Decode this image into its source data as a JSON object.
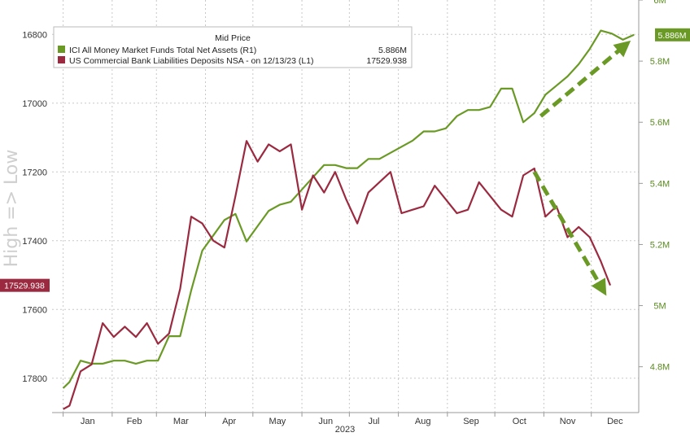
{
  "chart_data": {
    "type": "line",
    "side_label": "High => Low",
    "xlabel": "2023",
    "x_tick_labels": [
      "Jan",
      "Feb",
      "Mar",
      "Apr",
      "May",
      "Jun",
      "Jul",
      "Aug",
      "Sep",
      "Oct",
      "Nov",
      "Dec"
    ],
    "left_axis": {
      "inverted": true,
      "ylim": [
        17900,
        16700
      ],
      "ticks": [
        16800,
        17000,
        17200,
        17400,
        17600,
        17800
      ]
    },
    "right_axis": {
      "ylim": [
        4.65,
        6.0
      ],
      "ticks": [
        4.8,
        5.0,
        5.2,
        5.4,
        5.6,
        5.8,
        6.0
      ],
      "tick_labels": [
        "4.8M",
        "5M",
        "5.2M",
        "5.4M",
        "5.6M",
        "5.8M",
        "6M"
      ]
    },
    "legend": {
      "title": "Mid Price",
      "placement": "top-left"
    },
    "series": [
      {
        "name": "ICI All Money Market Funds Total Net Assets  (R1)",
        "legend_value": "5.886M",
        "badge_label": "5.886M",
        "axis": "right",
        "color": "#6a9a25",
        "points": [
          [
            "2023-01-01",
            4.73
          ],
          [
            "2023-01-05",
            4.75
          ],
          [
            "2023-01-12",
            4.82
          ],
          [
            "2023-01-19",
            4.81
          ],
          [
            "2023-01-26",
            4.81
          ],
          [
            "2023-02-02",
            4.82
          ],
          [
            "2023-02-09",
            4.82
          ],
          [
            "2023-02-16",
            4.81
          ],
          [
            "2023-02-23",
            4.82
          ],
          [
            "2023-03-02",
            4.82
          ],
          [
            "2023-03-09",
            4.9
          ],
          [
            "2023-03-16",
            4.9
          ],
          [
            "2023-03-23",
            5.05
          ],
          [
            "2023-03-30",
            5.18
          ],
          [
            "2023-04-06",
            5.23
          ],
          [
            "2023-04-13",
            5.28
          ],
          [
            "2023-04-20",
            5.3
          ],
          [
            "2023-04-27",
            5.21
          ],
          [
            "2023-05-04",
            5.26
          ],
          [
            "2023-05-11",
            5.31
          ],
          [
            "2023-05-18",
            5.33
          ],
          [
            "2023-05-25",
            5.34
          ],
          [
            "2023-06-01",
            5.38
          ],
          [
            "2023-06-08",
            5.42
          ],
          [
            "2023-06-15",
            5.46
          ],
          [
            "2023-06-22",
            5.46
          ],
          [
            "2023-06-29",
            5.45
          ],
          [
            "2023-07-06",
            5.45
          ],
          [
            "2023-07-13",
            5.48
          ],
          [
            "2023-07-20",
            5.48
          ],
          [
            "2023-07-27",
            5.5
          ],
          [
            "2023-08-03",
            5.52
          ],
          [
            "2023-08-10",
            5.54
          ],
          [
            "2023-08-17",
            5.57
          ],
          [
            "2023-08-24",
            5.57
          ],
          [
            "2023-08-31",
            5.58
          ],
          [
            "2023-09-07",
            5.62
          ],
          [
            "2023-09-14",
            5.64
          ],
          [
            "2023-09-21",
            5.64
          ],
          [
            "2023-09-28",
            5.65
          ],
          [
            "2023-10-05",
            5.71
          ],
          [
            "2023-10-12",
            5.71
          ],
          [
            "2023-10-19",
            5.6
          ],
          [
            "2023-10-26",
            5.63
          ],
          [
            "2023-11-02",
            5.69
          ],
          [
            "2023-11-09",
            5.72
          ],
          [
            "2023-11-16",
            5.75
          ],
          [
            "2023-11-23",
            5.79
          ],
          [
            "2023-11-30",
            5.84
          ],
          [
            "2023-12-07",
            5.9
          ],
          [
            "2023-12-14",
            5.89
          ],
          [
            "2023-12-21",
            5.87
          ],
          [
            "2023-12-28",
            5.886
          ]
        ]
      },
      {
        "name": "US Commercial Bank Liabilities Deposits NSA -  on 12/13/23  (L1)",
        "legend_value": "17529.938",
        "badge_label": "17529.938",
        "axis": "left",
        "color": "#9b2a40",
        "points": [
          [
            "2023-01-01",
            17890
          ],
          [
            "2023-01-05",
            17880
          ],
          [
            "2023-01-12",
            17780
          ],
          [
            "2023-01-19",
            17760
          ],
          [
            "2023-01-26",
            17640
          ],
          [
            "2023-02-02",
            17680
          ],
          [
            "2023-02-09",
            17650
          ],
          [
            "2023-02-16",
            17680
          ],
          [
            "2023-02-23",
            17640
          ],
          [
            "2023-03-02",
            17700
          ],
          [
            "2023-03-09",
            17670
          ],
          [
            "2023-03-16",
            17540
          ],
          [
            "2023-03-23",
            17330
          ],
          [
            "2023-03-30",
            17350
          ],
          [
            "2023-04-06",
            17400
          ],
          [
            "2023-04-13",
            17420
          ],
          [
            "2023-04-20",
            17270
          ],
          [
            "2023-04-27",
            17110
          ],
          [
            "2023-05-04",
            17170
          ],
          [
            "2023-05-11",
            17120
          ],
          [
            "2023-05-18",
            17140
          ],
          [
            "2023-05-25",
            17120
          ],
          [
            "2023-06-01",
            17310
          ],
          [
            "2023-06-08",
            17210
          ],
          [
            "2023-06-15",
            17260
          ],
          [
            "2023-06-22",
            17200
          ],
          [
            "2023-06-29",
            17280
          ],
          [
            "2023-07-06",
            17350
          ],
          [
            "2023-07-13",
            17260
          ],
          [
            "2023-07-20",
            17230
          ],
          [
            "2023-07-27",
            17200
          ],
          [
            "2023-08-03",
            17320
          ],
          [
            "2023-08-10",
            17310
          ],
          [
            "2023-08-17",
            17300
          ],
          [
            "2023-08-24",
            17240
          ],
          [
            "2023-08-31",
            17280
          ],
          [
            "2023-09-07",
            17320
          ],
          [
            "2023-09-14",
            17310
          ],
          [
            "2023-09-21",
            17230
          ],
          [
            "2023-09-28",
            17270
          ],
          [
            "2023-10-05",
            17310
          ],
          [
            "2023-10-12",
            17330
          ],
          [
            "2023-10-19",
            17210
          ],
          [
            "2023-10-26",
            17190
          ],
          [
            "2023-11-02",
            17330
          ],
          [
            "2023-11-09",
            17300
          ],
          [
            "2023-11-16",
            17390
          ],
          [
            "2023-11-23",
            17360
          ],
          [
            "2023-11-30",
            17390
          ],
          [
            "2023-12-07",
            17460
          ],
          [
            "2023-12-13",
            17529.938
          ]
        ]
      }
    ],
    "annotations": [
      {
        "kind": "dashed-arrow",
        "axis": "right",
        "color": "#6a9a25",
        "from": [
          "2023-10-30",
          5.62
        ],
        "to": [
          "2023-12-22",
          5.85
        ]
      },
      {
        "kind": "dashed-arrow",
        "axis": "left",
        "color": "#6a9a25",
        "from": [
          "2023-10-26",
          17200
        ],
        "to": [
          "2023-12-08",
          17540
        ]
      }
    ]
  }
}
